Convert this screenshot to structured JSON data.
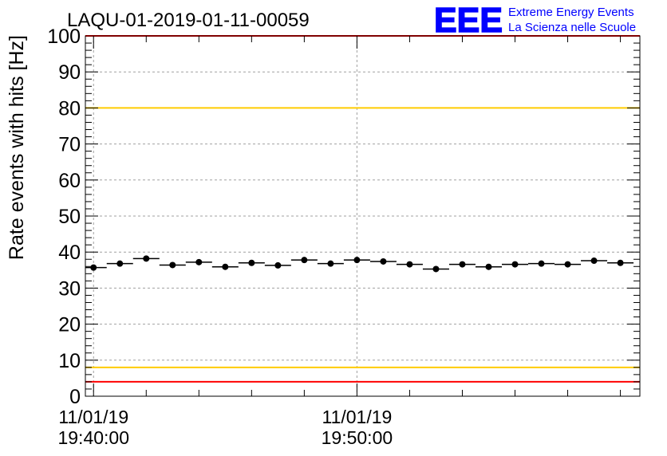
{
  "chart_data": {
    "type": "scatter",
    "title": "LAQU-01-2019-01-11-00059",
    "ylabel": "Rate events with hits [Hz]",
    "xlabel": "",
    "ylim": [
      0,
      100
    ],
    "yticks": [
      0,
      10,
      20,
      30,
      40,
      50,
      60,
      70,
      80,
      90,
      100
    ],
    "x_unit": "minutes",
    "xlim": [
      19.69,
      40.74
    ],
    "xticks": [
      {
        "x": 20,
        "date": "11/01/19",
        "time": "19:40:00"
      },
      {
        "x": 30,
        "date": "11/01/19",
        "time": "19:50:00"
      }
    ],
    "grid": true,
    "series": [
      {
        "x": [
          20,
          21,
          22,
          23,
          24,
          25,
          26,
          27,
          28,
          29,
          30,
          31,
          32,
          33,
          34,
          35,
          36,
          37,
          38,
          39,
          40
        ],
        "y": [
          35.7,
          36.8,
          38.2,
          36.4,
          37.2,
          35.9,
          37.0,
          36.3,
          37.8,
          36.8,
          37.8,
          37.4,
          36.6,
          35.3,
          36.6,
          35.9,
          36.6,
          36.8,
          36.6,
          37.6,
          37.0
        ],
        "bin_width": 1,
        "color": "#000000"
      }
    ],
    "reference_lines": [
      {
        "y": 100,
        "color": "#ff0000"
      },
      {
        "y": 80,
        "color": "#ffcc00"
      },
      {
        "y": 8,
        "color": "#ffcc00"
      },
      {
        "y": 4,
        "color": "#ff0000"
      }
    ]
  },
  "logo": {
    "mark": "EEE",
    "line1": "Extreme Energy Events",
    "line2": "La Scienza nelle Scuole",
    "color": "#0000ff"
  }
}
